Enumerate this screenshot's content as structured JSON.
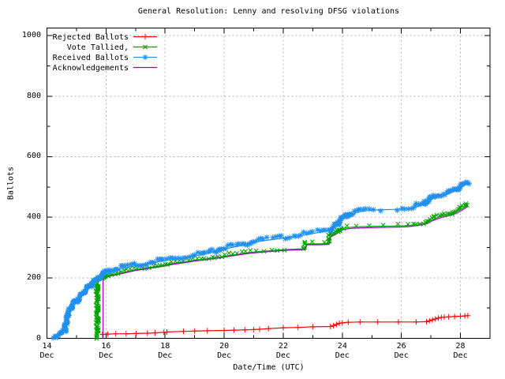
{
  "chart_data": {
    "type": "line",
    "title": "General Resolution: Lenny and resolving DFSG violations",
    "xlabel": "Date/Time (UTC)",
    "ylabel": "Ballots",
    "x_unit": "day of December (UTC)",
    "xlim": [
      14,
      29
    ],
    "ylim": [
      0,
      1025
    ],
    "grid": {
      "style": "dashed",
      "color": "#b3b3b3",
      "on": "major"
    },
    "frame": true,
    "legend_position": "top-left",
    "x_ticks": [
      {
        "value": 14,
        "label": "14",
        "sublabel": "Dec"
      },
      {
        "value": 16,
        "label": "16",
        "sublabel": "Dec"
      },
      {
        "value": 18,
        "label": "18",
        "sublabel": "Dec"
      },
      {
        "value": 20,
        "label": "20",
        "sublabel": "Dec"
      },
      {
        "value": 22,
        "label": "22",
        "sublabel": "Dec"
      },
      {
        "value": 24,
        "label": "24",
        "sublabel": "Dec"
      },
      {
        "value": 26,
        "label": "26",
        "sublabel": "Dec"
      },
      {
        "value": 28,
        "label": "28",
        "sublabel": "Dec"
      }
    ],
    "x_minor_ticks": [
      15,
      17,
      19,
      21,
      23,
      25,
      27
    ],
    "y_ticks": [
      {
        "value": 0,
        "label": "0"
      },
      {
        "value": 200,
        "label": "200"
      },
      {
        "value": 400,
        "label": "400"
      },
      {
        "value": 600,
        "label": "600"
      },
      {
        "value": 800,
        "label": "800"
      },
      {
        "value": 1000,
        "label": "1000"
      }
    ],
    "y_minor_ticks": [
      100,
      300,
      500,
      700,
      900
    ],
    "series": [
      {
        "name": "Rejected Ballots",
        "color": "#ff0000",
        "marker": "plus",
        "points": [
          [
            15.88,
            13
          ],
          [
            16.06,
            14
          ],
          [
            16.33,
            15
          ],
          [
            16.68,
            15
          ],
          [
            17.02,
            16
          ],
          [
            17.4,
            17
          ],
          [
            17.66,
            18
          ],
          [
            17.96,
            20
          ],
          [
            18.06,
            21
          ],
          [
            18.62,
            23
          ],
          [
            19.0,
            24
          ],
          [
            19.43,
            25
          ],
          [
            20.0,
            26
          ],
          [
            20.33,
            27
          ],
          [
            20.7,
            28
          ],
          [
            21.0,
            29
          ],
          [
            21.2,
            30
          ],
          [
            21.5,
            32
          ],
          [
            22.0,
            35
          ],
          [
            22.5,
            36
          ],
          [
            23.0,
            38
          ],
          [
            23.6,
            39
          ],
          [
            23.7,
            42
          ],
          [
            23.8,
            46
          ],
          [
            23.9,
            50
          ],
          [
            24.0,
            51
          ],
          [
            24.2,
            53
          ],
          [
            24.6,
            54
          ],
          [
            25.2,
            54
          ],
          [
            25.9,
            54
          ],
          [
            26.5,
            54
          ],
          [
            26.85,
            55
          ],
          [
            26.95,
            58
          ],
          [
            27.05,
            61
          ],
          [
            27.15,
            64
          ],
          [
            27.25,
            67
          ],
          [
            27.35,
            69
          ],
          [
            27.45,
            70
          ],
          [
            27.6,
            71
          ],
          [
            27.8,
            72
          ],
          [
            28.0,
            73
          ],
          [
            28.15,
            74
          ],
          [
            28.25,
            75
          ]
        ]
      },
      {
        "name": "Vote Tallied,",
        "color": "#00a400",
        "marker": "cross",
        "points": [
          [
            15.73,
            0
          ],
          [
            15.73,
            188
          ],
          [
            15.83,
            192
          ],
          [
            16.0,
            205
          ],
          [
            16.3,
            212
          ],
          [
            16.6,
            218
          ],
          [
            17.0,
            227
          ],
          [
            17.4,
            233
          ],
          [
            17.8,
            239
          ],
          [
            18.0,
            243
          ],
          [
            18.3,
            248
          ],
          [
            18.6,
            252
          ],
          [
            19.0,
            258
          ],
          [
            19.4,
            263
          ],
          [
            19.8,
            268
          ],
          [
            20.0,
            271
          ],
          [
            20.4,
            277
          ],
          [
            20.8,
            283
          ],
          [
            21.2,
            287
          ],
          [
            21.5,
            289
          ],
          [
            21.9,
            292
          ],
          [
            22.2,
            294
          ],
          [
            22.5,
            295
          ],
          [
            22.75,
            296
          ],
          [
            22.8,
            312
          ],
          [
            23.2,
            312
          ],
          [
            23.55,
            313
          ],
          [
            23.6,
            338
          ],
          [
            23.75,
            345
          ],
          [
            23.9,
            355
          ],
          [
            24.0,
            363
          ],
          [
            24.3,
            367
          ],
          [
            24.7,
            369
          ],
          [
            25.2,
            370
          ],
          [
            25.7,
            371
          ],
          [
            26.1,
            372
          ],
          [
            26.35,
            374
          ],
          [
            26.55,
            377
          ],
          [
            26.8,
            381
          ],
          [
            27.0,
            390
          ],
          [
            27.2,
            398
          ],
          [
            27.4,
            405
          ],
          [
            27.6,
            410
          ],
          [
            27.8,
            416
          ],
          [
            28.0,
            425
          ],
          [
            28.15,
            434
          ],
          [
            28.25,
            441
          ]
        ]
      },
      {
        "name": "Received Ballots",
        "color": "#2090f0",
        "marker": "star",
        "points": [
          [
            14.17,
            2
          ],
          [
            14.3,
            5
          ],
          [
            14.45,
            9
          ],
          [
            14.55,
            14
          ],
          [
            14.62,
            25
          ],
          [
            14.68,
            50
          ],
          [
            14.75,
            80
          ],
          [
            14.85,
            100
          ],
          [
            15.0,
            118
          ],
          [
            15.15,
            135
          ],
          [
            15.3,
            152
          ],
          [
            15.45,
            168
          ],
          [
            15.6,
            183
          ],
          [
            15.75,
            196
          ],
          [
            15.9,
            206
          ],
          [
            16.0,
            215
          ],
          [
            16.25,
            224
          ],
          [
            16.5,
            230
          ],
          [
            16.8,
            236
          ],
          [
            17.0,
            240
          ],
          [
            17.5,
            248
          ],
          [
            17.9,
            255
          ],
          [
            18.0,
            257
          ],
          [
            18.3,
            262
          ],
          [
            18.6,
            266
          ],
          [
            19.0,
            272
          ],
          [
            19.3,
            277
          ],
          [
            19.7,
            287
          ],
          [
            20.0,
            295
          ],
          [
            20.3,
            301
          ],
          [
            20.7,
            309
          ],
          [
            21.0,
            316
          ],
          [
            21.3,
            322
          ],
          [
            21.7,
            327
          ],
          [
            22.0,
            331
          ],
          [
            22.3,
            335
          ],
          [
            22.7,
            341
          ],
          [
            23.0,
            346
          ],
          [
            23.3,
            351
          ],
          [
            23.55,
            356
          ],
          [
            23.7,
            362
          ],
          [
            23.85,
            375
          ],
          [
            24.0,
            392
          ],
          [
            24.15,
            402
          ],
          [
            24.35,
            411
          ],
          [
            24.6,
            418
          ],
          [
            24.85,
            422
          ],
          [
            25.1,
            424
          ],
          [
            25.5,
            425
          ],
          [
            25.8,
            426
          ],
          [
            26.1,
            428
          ],
          [
            26.35,
            430
          ],
          [
            26.55,
            435
          ],
          [
            26.8,
            444
          ],
          [
            27.0,
            456
          ],
          [
            27.1,
            465
          ],
          [
            27.25,
            471
          ],
          [
            27.45,
            474
          ],
          [
            27.6,
            478
          ],
          [
            27.75,
            484
          ],
          [
            27.9,
            492
          ],
          [
            28.05,
            500
          ],
          [
            28.15,
            506
          ],
          [
            28.3,
            512
          ]
        ]
      },
      {
        "name": "Acknowledgements",
        "color": "#a000c8",
        "marker": "none",
        "points": [
          [
            15.9,
            0
          ],
          [
            15.9,
            195
          ],
          [
            16.0,
            202
          ],
          [
            16.3,
            209
          ],
          [
            16.6,
            215
          ],
          [
            17.0,
            224
          ],
          [
            17.4,
            230
          ],
          [
            17.8,
            236
          ],
          [
            18.0,
            240
          ],
          [
            18.3,
            245
          ],
          [
            18.6,
            249
          ],
          [
            19.0,
            255
          ],
          [
            19.4,
            260
          ],
          [
            19.8,
            265
          ],
          [
            20.0,
            268
          ],
          [
            20.4,
            274
          ],
          [
            20.8,
            280
          ],
          [
            21.2,
            284
          ],
          [
            21.5,
            286
          ],
          [
            21.9,
            289
          ],
          [
            22.2,
            291
          ],
          [
            22.5,
            292
          ],
          [
            22.75,
            293
          ],
          [
            22.8,
            309
          ],
          [
            23.2,
            309
          ],
          [
            23.55,
            310
          ],
          [
            23.6,
            335
          ],
          [
            23.75,
            342
          ],
          [
            23.9,
            352
          ],
          [
            24.0,
            359
          ],
          [
            24.3,
            363
          ],
          [
            24.7,
            365
          ],
          [
            25.2,
            366
          ],
          [
            25.7,
            367
          ],
          [
            26.1,
            368
          ],
          [
            26.35,
            370
          ],
          [
            26.55,
            373
          ],
          [
            26.8,
            377
          ],
          [
            27.0,
            386
          ],
          [
            27.2,
            394
          ],
          [
            27.4,
            400
          ],
          [
            27.6,
            405
          ],
          [
            27.8,
            411
          ],
          [
            28.0,
            420
          ],
          [
            28.15,
            429
          ],
          [
            28.25,
            436
          ]
        ]
      }
    ]
  }
}
